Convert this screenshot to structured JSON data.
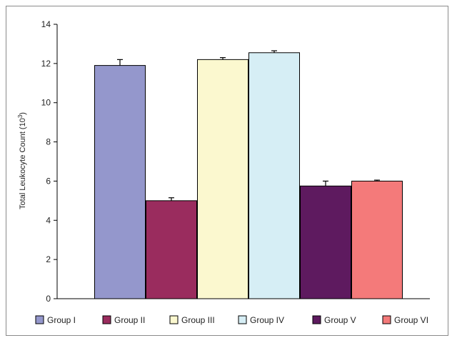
{
  "chart_data": {
    "type": "bar",
    "categories": [
      "Group I",
      "Group II",
      "Group III",
      "Group IV",
      "Group V",
      "Group VI"
    ],
    "values": [
      11.9,
      5.0,
      12.2,
      12.55,
      5.75,
      6.0
    ],
    "errors": [
      0.3,
      0.15,
      0.1,
      0.1,
      0.25,
      0.05
    ],
    "colors": [
      "#9497cc",
      "#9a2c5e",
      "#fbf8cf",
      "#d6eef5",
      "#5e1a5f",
      "#f47a7a"
    ],
    "ylabel_main": "Total Leukocyte Count (10",
    "ylabel_sup": "3",
    "ylabel_end": ")",
    "ylim": [
      0,
      14
    ],
    "yticks": [
      0,
      2,
      4,
      6,
      8,
      10,
      12,
      14
    ],
    "grid": false,
    "legend_position": "bottom"
  }
}
